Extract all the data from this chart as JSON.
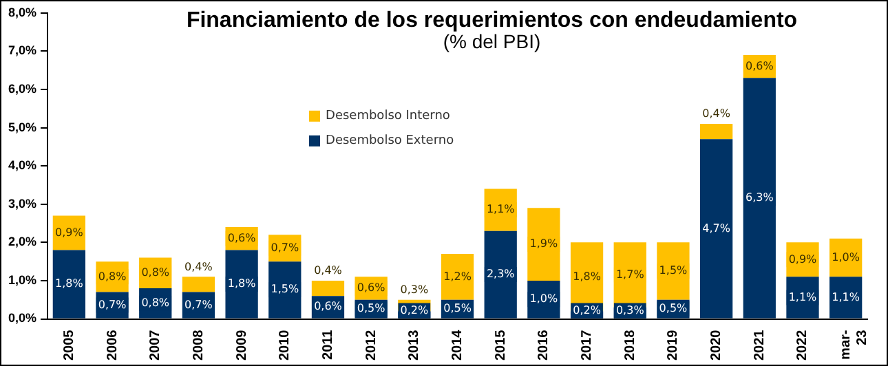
{
  "chart_data": {
    "type": "bar",
    "title": "Financiamiento de los requerimientos con endeudamiento",
    "subtitle": "(% del PBI)",
    "categories": [
      "2005",
      "2006",
      "2007",
      "2008",
      "2009",
      "2010",
      "2011",
      "2012",
      "2013",
      "2014",
      "2015",
      "2016",
      "2017",
      "2018",
      "2019",
      "2020",
      "2021",
      "2022",
      "mar-23"
    ],
    "stacked": true,
    "series": [
      {
        "name": "Desembolso Externo",
        "color": "#003366",
        "values": [
          1.8,
          0.7,
          0.8,
          0.7,
          1.8,
          1.5,
          0.6,
          0.5,
          0.2,
          0.5,
          2.3,
          1.0,
          0.2,
          0.3,
          0.5,
          4.7,
          6.3,
          1.1,
          1.1
        ],
        "value_labels": [
          "1,8%",
          "0,7%",
          "0,8%",
          "0,7%",
          "1,8%",
          "1,5%",
          "0,6%",
          "0,5%",
          "0,2%",
          "0,5%",
          "2,3%",
          "1,0%",
          "0,2%",
          "0,3%",
          "0,5%",
          "4,7%",
          "6,3%",
          "1,1%",
          "1,1%"
        ]
      },
      {
        "name": "Desembolso Interno",
        "color": "#ffc000",
        "values": [
          0.9,
          0.8,
          0.8,
          0.4,
          0.6,
          0.7,
          0.4,
          0.6,
          0.3,
          1.2,
          1.1,
          1.9,
          1.8,
          1.7,
          1.5,
          0.4,
          0.6,
          0.9,
          1.0
        ],
        "value_labels": [
          "0,9%",
          "0,8%",
          "0,8%",
          "0,4%",
          "0,6%",
          "0,7%",
          "0,4%",
          "0,6%",
          "0,3%",
          "1,2%",
          "1,1%",
          "1,9%",
          "1,8%",
          "1,7%",
          "1,5%",
          "0,4%",
          "0,6%",
          "0,9%",
          "1,0%"
        ]
      }
    ],
    "ylim": [
      0,
      8
    ],
    "yticks": [
      {
        "value": 0,
        "label": "0,0%"
      },
      {
        "value": 1,
        "label": "1,0%"
      },
      {
        "value": 2,
        "label": "2,0%"
      },
      {
        "value": 3,
        "label": "3,0%"
      },
      {
        "value": 4,
        "label": "4,0%"
      },
      {
        "value": 5,
        "label": "5,0%"
      },
      {
        "value": 6,
        "label": "6,0%"
      },
      {
        "value": 7,
        "label": "7,0%"
      },
      {
        "value": 8,
        "label": "8,0%"
      }
    ],
    "grid": false,
    "legend": "top left"
  }
}
